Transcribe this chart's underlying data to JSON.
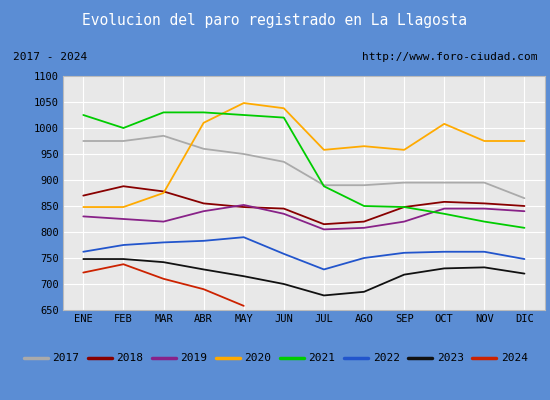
{
  "title": "Evolucion del paro registrado en La Llagosta",
  "subtitle_left": "2017 - 2024",
  "subtitle_right": "http://www.foro-ciudad.com",
  "title_bg_color": "#5b8dd4",
  "title_text_color": "#ffffff",
  "subtitle_bg_color": "#ffffff",
  "subtitle_text_color": "#000000",
  "months": [
    "ENE",
    "FEB",
    "MAR",
    "ABR",
    "MAY",
    "JUN",
    "JUL",
    "AGO",
    "SEP",
    "OCT",
    "NOV",
    "DIC"
  ],
  "ylim": [
    650,
    1100
  ],
  "yticks": [
    650,
    700,
    750,
    800,
    850,
    900,
    950,
    1000,
    1050,
    1100
  ],
  "series": {
    "2017": {
      "color": "#aaaaaa",
      "data": [
        975,
        975,
        985,
        960,
        950,
        935,
        890,
        890,
        895,
        895,
        895,
        865
      ]
    },
    "2018": {
      "color": "#880000",
      "data": [
        870,
        888,
        878,
        855,
        848,
        845,
        815,
        820,
        848,
        858,
        855,
        850
      ]
    },
    "2019": {
      "color": "#882288",
      "data": [
        830,
        825,
        820,
        840,
        852,
        835,
        805,
        808,
        820,
        845,
        845,
        840
      ]
    },
    "2020": {
      "color": "#ffaa00",
      "data": [
        848,
        848,
        875,
        1010,
        1048,
        1038,
        958,
        965,
        958,
        1008,
        975,
        975
      ]
    },
    "2021": {
      "color": "#00cc00",
      "data": [
        1025,
        1000,
        1030,
        1030,
        1025,
        1020,
        888,
        850,
        848,
        835,
        820,
        808
      ]
    },
    "2022": {
      "color": "#2255cc",
      "data": [
        762,
        775,
        780,
        783,
        790,
        758,
        728,
        750,
        760,
        762,
        762,
        748
      ]
    },
    "2023": {
      "color": "#111111",
      "data": [
        748,
        748,
        742,
        728,
        715,
        700,
        678,
        685,
        718,
        730,
        732,
        720
      ]
    },
    "2024": {
      "color": "#cc2200",
      "data": [
        722,
        738,
        710,
        690,
        658,
        null,
        null,
        null,
        null,
        null,
        null,
        null
      ]
    }
  },
  "legend_order": [
    "2017",
    "2018",
    "2019",
    "2020",
    "2021",
    "2022",
    "2023",
    "2024"
  ],
  "plot_bg_color": "#e8e8e8",
  "grid_color": "#ffffff",
  "border_color": "#5b8dd4",
  "fig_width": 5.5,
  "fig_height": 4.0,
  "dpi": 100
}
